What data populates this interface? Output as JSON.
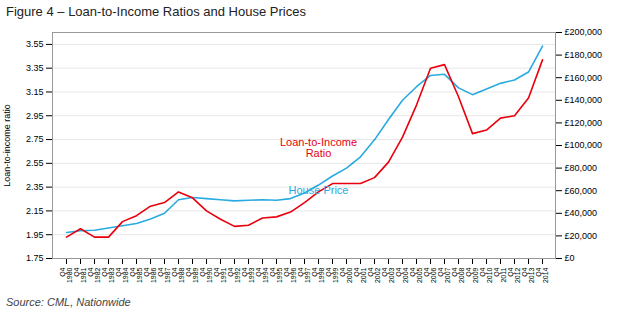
{
  "chart_data": {
    "type": "line",
    "title": "Figure 4 – Loan-to-Income Ratios and House Prices",
    "ylabel": "Loan-to-income ratio",
    "source": "Source: CML, Nationwide",
    "categories": [
      "Q4\n1980",
      "Q4\n1981",
      "Q4\n1982",
      "Q4\n1983",
      "Q4\n1984",
      "Q4\n1985",
      "Q4\n1986",
      "Q4\n1987",
      "Q4\n1988",
      "Q4\n1989",
      "Q4\n1990",
      "Q4\n1991",
      "Q4\n1992",
      "Q4\n1993",
      "Q4\n1994",
      "Q4\n1995",
      "Q4\n1996",
      "Q4\n1997",
      "Q4\n1998",
      "Q4\n1999",
      "Q4\n2000",
      "Q4\n2001",
      "Q4\n2002",
      "Q4\n2003",
      "Q4\n2004",
      "Q4\n2005",
      "Q4\n2006",
      "Q4\n2007",
      "Q4\n2008",
      "Q4\n2009",
      "Q4\n2010",
      "Q4\n2011",
      "Q4\n2012",
      "Q4\n2013",
      "Q4\n2014"
    ],
    "series": [
      {
        "name": "Loan-to-Income\nRatio",
        "color": "#e8000d",
        "axis": "y",
        "values": [
          1.93,
          2.0,
          1.93,
          1.93,
          2.06,
          2.11,
          2.19,
          2.22,
          2.31,
          2.26,
          2.15,
          2.08,
          2.02,
          2.03,
          2.09,
          2.1,
          2.14,
          2.22,
          2.31,
          2.38,
          2.38,
          2.38,
          2.43,
          2.56,
          2.77,
          3.04,
          3.35,
          3.38,
          3.11,
          2.8,
          2.83,
          2.93,
          2.95,
          3.1,
          3.42
        ]
      },
      {
        "name": "House Price",
        "color": "#29abe2",
        "axis": "y2",
        "values": [
          23000,
          24500,
          25000,
          27000,
          29000,
          31000,
          35000,
          40000,
          52000,
          54000,
          53000,
          52000,
          51000,
          51500,
          52000,
          51500,
          53000,
          58000,
          65000,
          73000,
          80000,
          90000,
          105000,
          123000,
          140000,
          152000,
          162000,
          163000,
          151000,
          145000,
          150000,
          155000,
          158000,
          165000,
          188000
        ]
      }
    ],
    "ylim": [
      1.75,
      3.65
    ],
    "yticks": [
      1.75,
      1.95,
      2.15,
      2.35,
      2.55,
      2.75,
      2.95,
      3.15,
      3.35,
      3.55
    ],
    "y2lim": [
      0,
      200000
    ],
    "y2ticks": [
      {
        "value": 0,
        "label": "£0"
      },
      {
        "value": 20000,
        "label": "£20,000"
      },
      {
        "value": 40000,
        "label": "£40,000"
      },
      {
        "value": 60000,
        "label": "£60,000"
      },
      {
        "value": 80000,
        "label": "£80,000"
      },
      {
        "value": 100000,
        "label": "£100,000"
      },
      {
        "value": 120000,
        "label": "£120,000"
      },
      {
        "value": 140000,
        "label": "£140,000"
      },
      {
        "value": 160000,
        "label": "£160,000"
      },
      {
        "value": 180000,
        "label": "£180,000"
      },
      {
        "value": 200000,
        "label": "£200,000"
      }
    ],
    "annotations": [
      {
        "text": "Loan-to-Income\nRatio",
        "x": "Q4\n1998",
        "y": 2.68
      },
      {
        "text": "House Price",
        "x": "Q4\n1998",
        "y": 2.32
      }
    ],
    "grid": true
  }
}
